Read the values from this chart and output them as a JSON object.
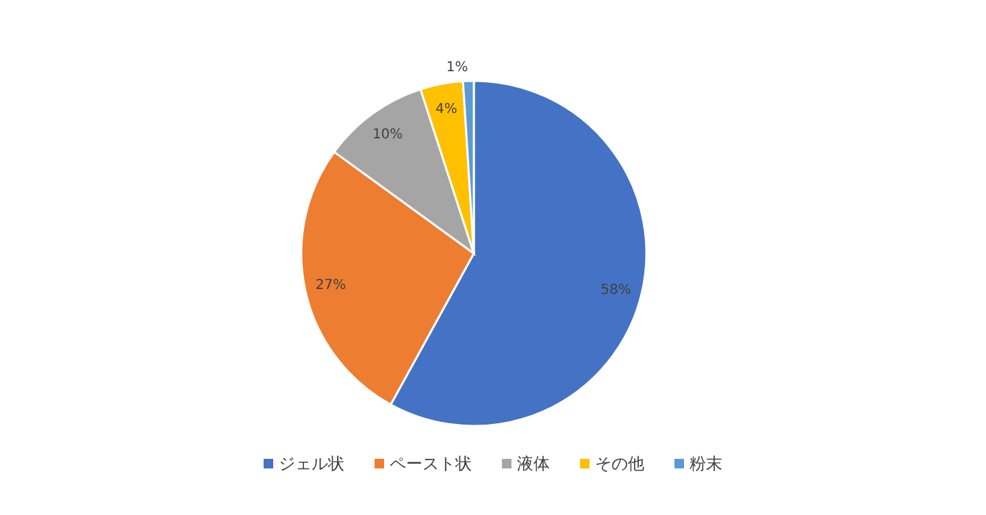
{
  "chart_data": {
    "type": "pie",
    "categories": [
      "ジェル状",
      "ペースト状",
      "液体",
      "その他",
      "粉末"
    ],
    "values": [
      58,
      27,
      10,
      4,
      1
    ],
    "colors": [
      "#4472c4",
      "#ed7d31",
      "#a5a5a5",
      "#ffc000",
      "#5b9bd5"
    ],
    "value_labels": [
      "58%",
      "27%",
      "10%",
      "4%",
      "1%"
    ],
    "legend": "bottom"
  }
}
